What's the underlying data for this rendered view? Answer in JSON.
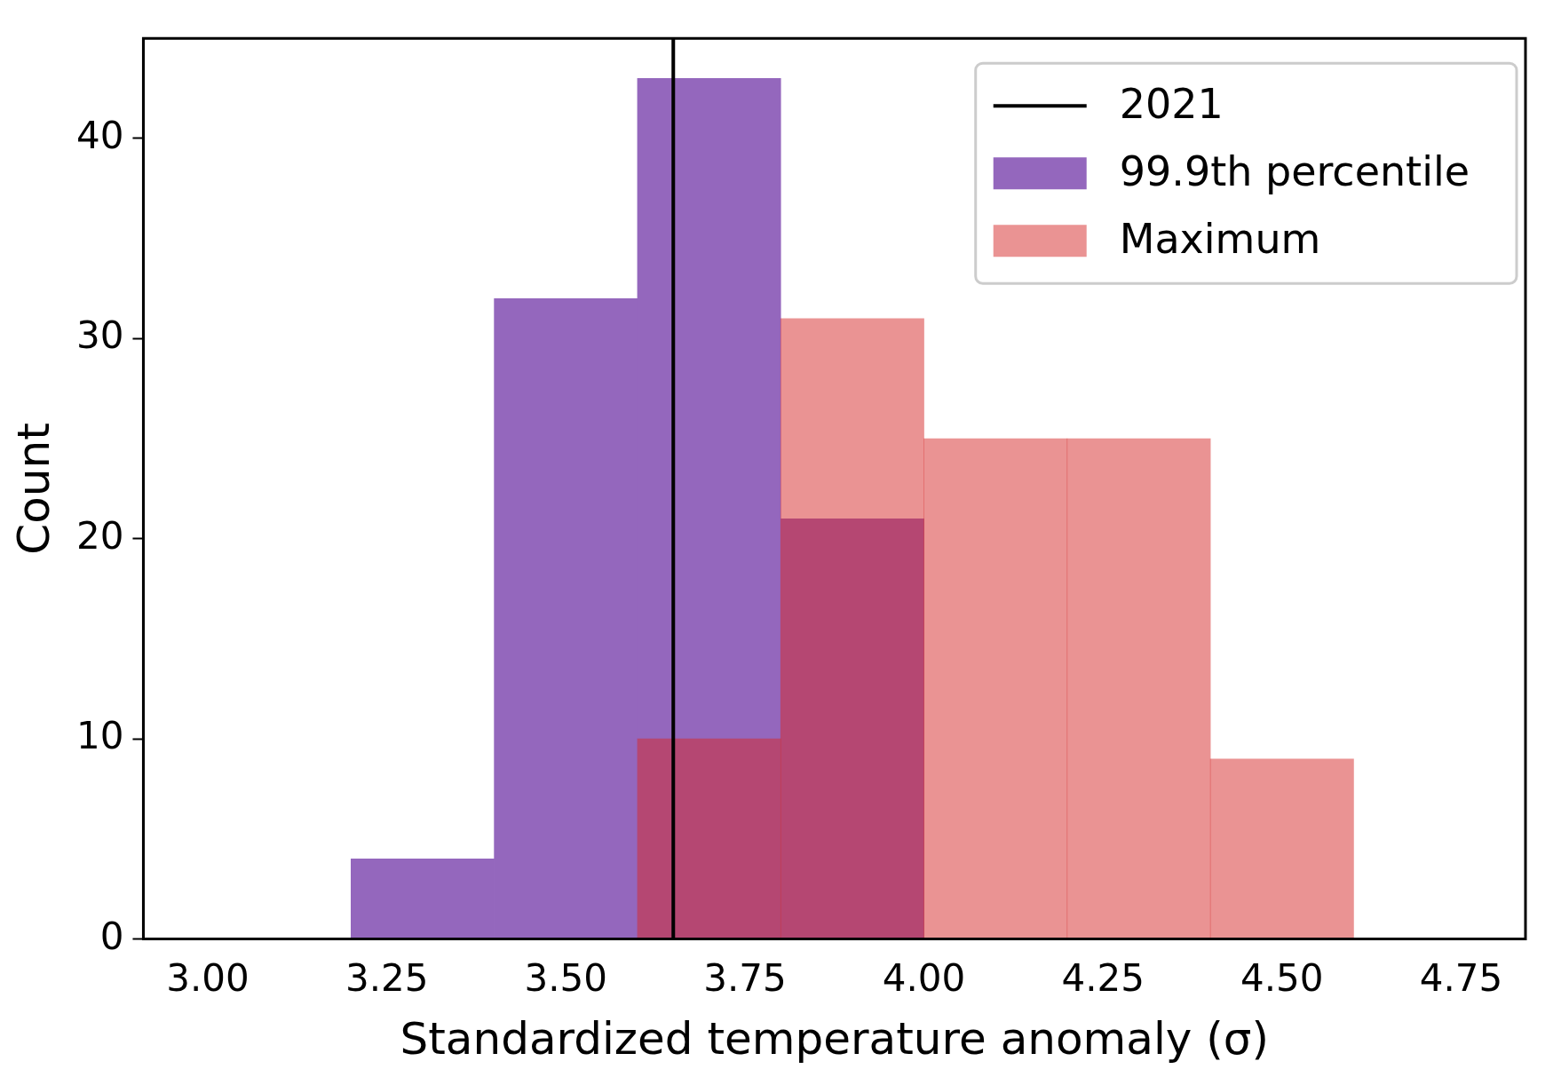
{
  "chart_data": {
    "type": "histogram",
    "xlabel": "Standardized temperature anomaly (σ)",
    "ylabel": "Count",
    "bins": [
      3.2,
      3.4,
      3.6,
      3.8,
      4.0,
      4.2,
      4.4,
      4.6
    ],
    "series": [
      {
        "name": "99.9th percentile",
        "color": "#9467bd",
        "values": [
          4,
          32,
          43,
          21,
          0,
          0,
          0
        ]
      },
      {
        "name": "Maximum",
        "color": "#d62728",
        "values": [
          0,
          0,
          10,
          31,
          25,
          25,
          9
        ]
      },
      {
        "type": "line",
        "name": "2021",
        "color": "#000000",
        "x": [
          3.65,
          3.65
        ],
        "values": [
          0,
          45
        ],
        "line_style": "solid"
      }
    ],
    "xlim": [
      2.91,
      4.84
    ],
    "ylim": [
      0,
      45
    ],
    "xticks": [
      {
        "value": 3,
        "label": "3.00"
      },
      {
        "value": 3.25,
        "label": "3.25"
      },
      {
        "value": 3.5,
        "label": "3.50"
      },
      {
        "value": 3.75,
        "label": "3.75"
      },
      {
        "value": 4,
        "label": "4.00"
      },
      {
        "value": 4.25,
        "label": "4.25"
      },
      {
        "value": 4.5,
        "label": "4.50"
      },
      {
        "value": 4.75,
        "label": "4.75"
      }
    ],
    "yticks": [
      0,
      10,
      20,
      30,
      40
    ],
    "legend": "top right",
    "grid": false
  }
}
